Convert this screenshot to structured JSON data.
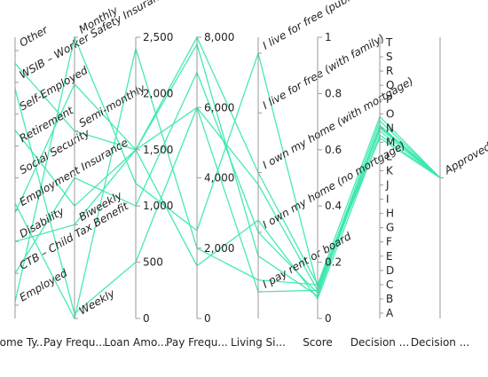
{
  "chart_data": {
    "type": "parallel-coordinates",
    "line_color": "#3de8b0",
    "axis_color": "#9a9a9a",
    "dimensions": [
      {
        "name": "Income Ty...",
        "kind": "categorical",
        "categories": [
          "Employed",
          "CTB – Child Tax Benefit",
          "Disability",
          "Employment Insurance",
          "Social Security",
          "Retirement",
          "Self-Employed",
          "WSIB – Worker Safety Insurance",
          "Other"
        ]
      },
      {
        "name": "Pay Frequ...",
        "kind": "categorical",
        "categories": [
          "Weekly",
          "Biweekly",
          "Semi-monthly",
          "Monthly"
        ]
      },
      {
        "name": "Loan Amo...",
        "kind": "numeric",
        "range": [
          0,
          2500
        ],
        "ticks": [
          "0",
          "500",
          "1,000",
          "1,500",
          "2,000",
          "2,500"
        ]
      },
      {
        "name": "Pay Frequ...",
        "kind": "numeric",
        "range": [
          0,
          8000
        ],
        "ticks": [
          "0",
          "2,000",
          "4,000",
          "6,000",
          "8,000"
        ]
      },
      {
        "name": "Living Si...",
        "kind": "categorical",
        "categories": [
          "I pay rent or board",
          "I own my home (no mortgage)",
          "I own my home (with mortgage)",
          "I live for free (with family)",
          "I live for free (public housing)"
        ]
      },
      {
        "name": "Score",
        "kind": "numeric",
        "range": [
          0,
          1
        ],
        "ticks": [
          "0",
          "0.2",
          "0.4",
          "0.6",
          "0.8",
          "1"
        ]
      },
      {
        "name": "Decision ...",
        "kind": "letters",
        "categories": [
          "A",
          "B",
          "C",
          "D",
          "E",
          "F",
          "G",
          "H",
          "I",
          "J",
          "K",
          "L",
          "M",
          "N",
          "O",
          "P",
          "Q",
          "R",
          "S",
          "T"
        ]
      },
      {
        "name": "Decision ...",
        "kind": "categorical",
        "categories": [
          "Approved"
        ]
      }
    ],
    "records": [
      [
        2.9,
        2.5,
        1500,
        7800,
        0.6,
        0.08,
        13.2,
        0.5
      ],
      [
        3.2,
        0.0,
        2400,
        2000,
        0.2,
        0.12,
        12.3,
        0.5
      ],
      [
        6.8,
        0.05,
        500,
        6000,
        0.0,
        0.1,
        13.5,
        0.5
      ],
      [
        0.1,
        3.0,
        1200,
        2500,
        4.0,
        0.11,
        13.0,
        0.5
      ],
      [
        2.0,
        1.0,
        1500,
        1500,
        1.2,
        0.07,
        12.5,
        0.5
      ],
      [
        7.6,
        2.0,
        1500,
        8000,
        2.0,
        0.12,
        13.8,
        0.5
      ],
      [
        1.0,
        1.5,
        1000,
        7000,
        1.0,
        0.09,
        12.8,
        0.5
      ],
      [
        5.5,
        1.2,
        1500,
        6000,
        1.8,
        0.1,
        13.1,
        0.5
      ]
    ]
  }
}
